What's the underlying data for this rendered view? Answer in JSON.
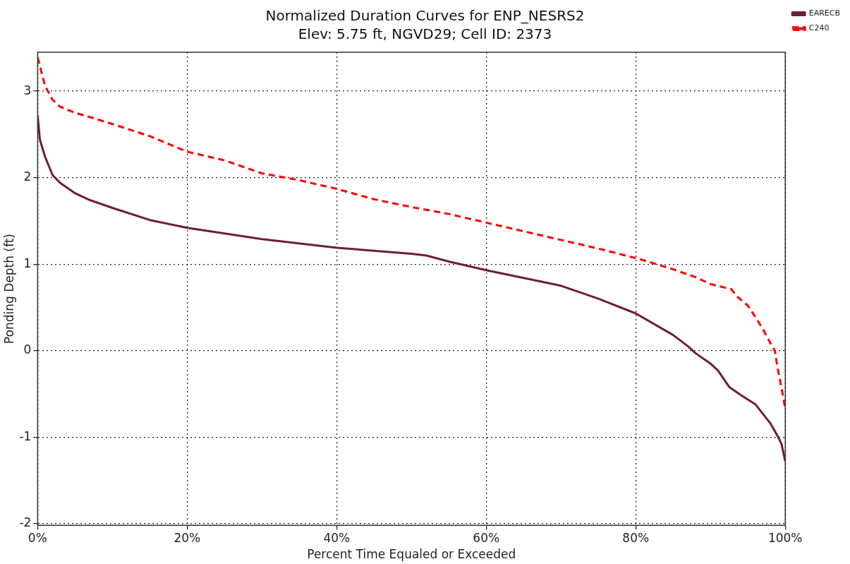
{
  "chart_data": {
    "type": "line",
    "title": "Normalized Duration Curves for ENP_NESRS2",
    "subtitle": "Elev: 5.75 ft, NGVD29; Cell ID: 2373",
    "xlabel": "Percent Time Equaled or Exceeded",
    "ylabel": "Ponding Depth (ft)",
    "xlim": [
      0,
      100
    ],
    "xticks": [
      {
        "value": 0,
        "label": "0%"
      },
      {
        "value": 20,
        "label": "20%"
      },
      {
        "value": 40,
        "label": "40%"
      },
      {
        "value": 60,
        "label": "60%"
      },
      {
        "value": 80,
        "label": "80%"
      },
      {
        "value": 100,
        "label": "100%"
      }
    ],
    "ylim": [
      -2.02,
      3.45
    ],
    "yticks": [
      -2,
      -1,
      0,
      1,
      2,
      3
    ],
    "grid": true,
    "legend": "top right",
    "marker": "none",
    "series": [
      {
        "name": "EARECB",
        "color": "#6e1f2f",
        "line_style": "solid",
        "x": [
          0,
          0.3,
          1,
          2,
          3,
          5,
          7,
          10,
          15,
          20,
          30,
          40,
          50,
          52,
          55,
          60,
          65,
          70,
          75,
          80,
          85,
          87,
          88,
          90,
          91,
          92.5,
          94,
          96,
          97,
          98,
          99,
          99.5,
          100
        ],
        "values": [
          2.72,
          2.44,
          2.24,
          2.03,
          1.94,
          1.82,
          1.74,
          1.65,
          1.51,
          1.42,
          1.29,
          1.19,
          1.12,
          1.1,
          1.03,
          0.93,
          0.84,
          0.75,
          0.6,
          0.43,
          0.18,
          0.05,
          -0.03,
          -0.15,
          -0.23,
          -0.42,
          -0.51,
          -0.62,
          -0.73,
          -0.84,
          -0.99,
          -1.08,
          -1.28
        ]
      },
      {
        "name": "C240",
        "color": "#ff0000",
        "line_style": "dashed",
        "x": [
          0,
          1,
          2,
          3,
          5,
          7,
          10,
          15,
          20,
          25,
          30,
          35,
          40,
          45,
          50,
          55,
          60,
          65,
          70,
          75,
          80,
          82,
          85,
          88,
          90,
          92.8,
          93.5,
          95,
          96,
          97,
          98,
          98.6,
          99,
          99.5,
          100
        ],
        "values": [
          3.39,
          3.06,
          2.9,
          2.82,
          2.75,
          2.7,
          2.62,
          2.48,
          2.3,
          2.2,
          2.05,
          1.97,
          1.87,
          1.75,
          1.66,
          1.58,
          1.48,
          1.38,
          1.28,
          1.18,
          1.07,
          1.02,
          0.94,
          0.85,
          0.77,
          0.71,
          0.63,
          0.52,
          0.39,
          0.25,
          0.09,
          0.0,
          -0.21,
          -0.43,
          -0.67
        ]
      }
    ]
  }
}
